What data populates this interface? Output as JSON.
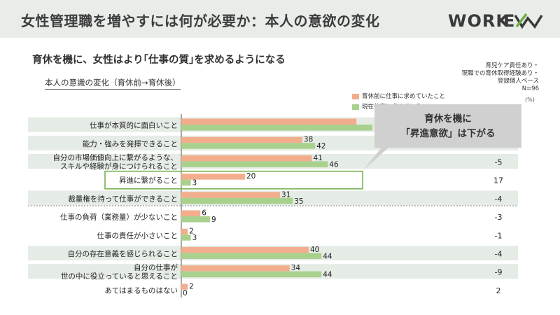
{
  "header": {
    "title": "女性管理職を増やすには何が必要か：本人の意欲の変化",
    "logo_text": "WORK EVX"
  },
  "subtitle": "育休を機に、女性はより｢仕事の質｣を求めるようになる",
  "section_title": "本人の意識の変化（育休前→育休後）",
  "base_note": [
    "育児ケア責任あり・",
    "現職での育休取得経験あり・",
    "登録個人ベース",
    "N=96"
  ],
  "unit_label": "(%)",
  "callout": {
    "line1": "育休を機に",
    "line2": "「昇進意欲」は下がる"
  },
  "colors": {
    "before": "#f2ad8d",
    "after": "#a9d18e",
    "row_band": "#e5ebe5",
    "highlight": "#70ad47",
    "callout_bg": "#d0d0d0"
  },
  "chart_data": {
    "type": "bar",
    "orientation": "horizontal",
    "xlim": [
      0,
      100
    ],
    "categories": [
      [
        "仕事が本質的に面白いこと"
      ],
      [
        "能力・強みを発揮できること"
      ],
      [
        "自分の市場価値向上に繋がるような、",
        "スキルや経験が身につけられること"
      ],
      [
        "昇進に繋がること"
      ],
      [
        "裁量権を持って仕事ができること"
      ],
      [
        "仕事の負荷（業務量）が少ないこと"
      ],
      [
        "仕事の責任が小さいこと"
      ],
      [
        "自分の存在意義を感じられること"
      ],
      [
        "自分の仕事が",
        "世の中に役立っていると思えること"
      ],
      [
        "あてはまるものはない"
      ]
    ],
    "series": [
      {
        "name": "育休前に仕事に求めていたこと",
        "values": [
          55,
          38,
          41,
          20,
          31,
          6,
          2,
          40,
          34,
          2
        ]
      },
      {
        "name": "現在仕事に求めていること",
        "values": [
          60,
          42,
          46,
          3,
          35,
          9,
          3,
          44,
          44,
          0
        ]
      }
    ],
    "value_labels": {
      "before": [
        "",
        "38",
        "41",
        "20",
        "31",
        "6",
        "2",
        "40",
        "34",
        "2"
      ],
      "after": [
        "",
        "42",
        "46",
        "3",
        "35",
        "9",
        "3",
        "44",
        "44",
        "0"
      ]
    },
    "differences": [
      "",
      "",
      "-5",
      "17",
      "-4",
      "-3",
      "-1",
      "-4",
      "-9",
      "2"
    ],
    "banded_rows": [
      true,
      true,
      true,
      false,
      true,
      false,
      false,
      true,
      true,
      false
    ],
    "highlight_row": 3,
    "divider_after_row": 4
  }
}
